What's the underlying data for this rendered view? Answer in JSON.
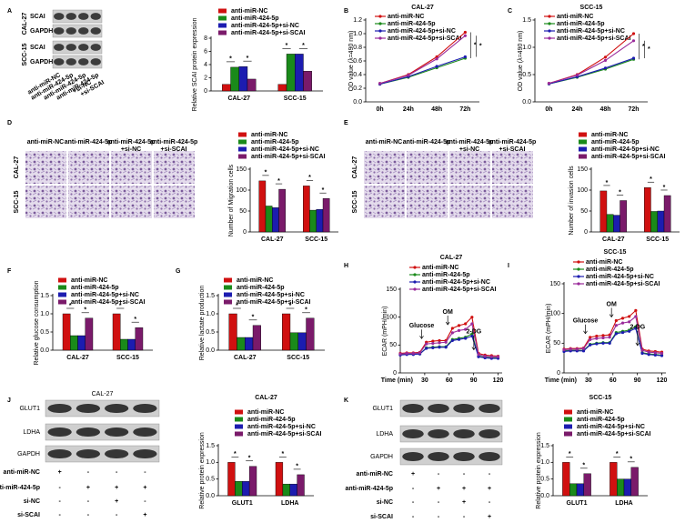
{
  "chart_data": [
    {
      "panel": "A",
      "type": "bar",
      "ylabel": "Relative SCAI protein expression",
      "categories": [
        "CAL-27",
        "SCC-15"
      ],
      "series": [
        {
          "name": "anti-miR-NC",
          "color": "#d01010",
          "values": [
            1.0,
            1.0
          ]
        },
        {
          "name": "anti-miR-424-5p",
          "color": "#1a8a1a",
          "values": [
            3.6,
            5.6
          ]
        },
        {
          "name": "anti-miR-424-5p+si-NC",
          "color": "#1c1cb0",
          "values": [
            3.7,
            5.6
          ]
        },
        {
          "name": "anti-miR-424-5p+si-SCAI",
          "color": "#7a1a6a",
          "values": [
            1.8,
            3.0
          ]
        }
      ],
      "ylim": [
        0,
        8
      ],
      "yticks": [
        0,
        2,
        4,
        6,
        8
      ],
      "annotations": [
        "*",
        "*",
        "*",
        "*"
      ]
    },
    {
      "panel": "B",
      "type": "line",
      "title": "CAL-27",
      "ylabel": "OD value (λ=490 nm)",
      "categories": [
        "0h",
        "24h",
        "48h",
        "72h"
      ],
      "series": [
        {
          "name": "anti-miR-NC",
          "color": "#d01010",
          "values": [
            0.27,
            0.4,
            0.66,
            1.02
          ]
        },
        {
          "name": "anti-miR-424-5p",
          "color": "#1a8a1a",
          "values": [
            0.26,
            0.36,
            0.5,
            0.64
          ]
        },
        {
          "name": "anti-miR-424-5p+si-NC",
          "color": "#1c1cb0",
          "values": [
            0.26,
            0.37,
            0.52,
            0.66
          ]
        },
        {
          "name": "anti-miR-424-5p+si-SCAI",
          "color": "#9a2a9a",
          "values": [
            0.27,
            0.39,
            0.63,
            0.97
          ]
        }
      ],
      "ylim": [
        0,
        1.2
      ],
      "yticks": [
        {
          "value": 0,
          "label": "0.0"
        },
        0.2,
        0.4,
        0.6,
        0.8,
        {
          "value": 1,
          "label": "1.0"
        },
        1.2
      ],
      "annotations": [
        "*",
        "*"
      ]
    },
    {
      "panel": "C",
      "type": "line",
      "title": "SCC-15",
      "ylabel": "OD value (λ=490 nm)",
      "categories": [
        "0h",
        "24h",
        "48h",
        "72h"
      ],
      "series": [
        {
          "name": "anti-miR-NC",
          "color": "#d01010",
          "values": [
            0.34,
            0.5,
            0.82,
            1.25
          ]
        },
        {
          "name": "anti-miR-424-5p",
          "color": "#1a8a1a",
          "values": [
            0.33,
            0.45,
            0.6,
            0.78
          ]
        },
        {
          "name": "anti-miR-424-5p+si-NC",
          "color": "#1c1cb0",
          "values": [
            0.33,
            0.46,
            0.62,
            0.8
          ]
        },
        {
          "name": "anti-miR-424-5p+si-SCAI",
          "color": "#9a2a9a",
          "values": [
            0.34,
            0.49,
            0.76,
            1.12
          ]
        }
      ],
      "ylim": [
        0,
        1.5
      ],
      "yticks": [
        {
          "value": 0,
          "label": "0.0"
        },
        0.5,
        {
          "value": 1,
          "label": "1.0"
        },
        1.5
      ],
      "annotations": [
        "*",
        "*"
      ]
    },
    {
      "panel": "D",
      "type": "bar",
      "ylabel": "Number of Migration cells",
      "categories": [
        "CAL-27",
        "SCC-15"
      ],
      "series": [
        {
          "name": "anti-miR-NC",
          "color": "#d01010",
          "values": [
            122,
            110
          ]
        },
        {
          "name": "anti-miR-424-5p",
          "color": "#1a8a1a",
          "values": [
            62,
            52
          ]
        },
        {
          "name": "anti-miR-424-5p+si-NC",
          "color": "#1c1cb0",
          "values": [
            58,
            54
          ]
        },
        {
          "name": "anti-miR-424-5p+si-SCAI",
          "color": "#7a1a6a",
          "values": [
            102,
            80
          ]
        }
      ],
      "ylim": [
        0,
        150
      ],
      "yticks": [
        0,
        50,
        100,
        150
      ],
      "annotations": [
        "*",
        "*",
        "*",
        "*"
      ]
    },
    {
      "panel": "E",
      "type": "bar",
      "ylabel": "Number of invasion cells",
      "categories": [
        "CAL-27",
        "SCC-15"
      ],
      "series": [
        {
          "name": "anti-miR-NC",
          "color": "#d01010",
          "values": [
            98,
            106
          ]
        },
        {
          "name": "anti-miR-424-5p",
          "color": "#1a8a1a",
          "values": [
            42,
            49
          ]
        },
        {
          "name": "anti-miR-424-5p+si-NC",
          "color": "#1c1cb0",
          "values": [
            40,
            50
          ]
        },
        {
          "name": "anti-miR-424-5p+si-SCAI",
          "color": "#7a1a6a",
          "values": [
            75,
            87
          ]
        }
      ],
      "ylim": [
        0,
        150
      ],
      "yticks": [
        0,
        50,
        100,
        150
      ],
      "annotations": [
        "*",
        "*",
        "*",
        "*"
      ]
    },
    {
      "panel": "F",
      "type": "bar",
      "ylabel": "Relative glucose consumption",
      "categories": [
        "CAL-27",
        "SCC-15"
      ],
      "series": [
        {
          "name": "anti-miR-NC",
          "color": "#d01010",
          "values": [
            1.0,
            1.0
          ]
        },
        {
          "name": "anti-miR-424-5p",
          "color": "#1a8a1a",
          "values": [
            0.4,
            0.3
          ]
        },
        {
          "name": "anti-miR-424-5p+si-NC",
          "color": "#1c1cb0",
          "values": [
            0.4,
            0.3
          ]
        },
        {
          "name": "anti-miR-424-5p+si-SCAI",
          "color": "#7a1a6a",
          "values": [
            0.88,
            0.62
          ]
        }
      ],
      "ylim": [
        0,
        1.5
      ],
      "yticks": [
        {
          "value": 0,
          "label": "0.0"
        },
        0.5,
        {
          "value": 1,
          "label": "1.0"
        },
        1.5
      ],
      "annotations": [
        "*",
        "*",
        "*",
        "*"
      ]
    },
    {
      "panel": "G",
      "type": "bar",
      "ylabel": "Relative lactate production",
      "categories": [
        "CAL-27",
        "SCC-15"
      ],
      "series": [
        {
          "name": "anti-miR-NC",
          "color": "#d01010",
          "values": [
            1.0,
            1.0
          ]
        },
        {
          "name": "anti-miR-424-5p",
          "color": "#1a8a1a",
          "values": [
            0.35,
            0.48
          ]
        },
        {
          "name": "anti-miR-424-5p+si-NC",
          "color": "#1c1cb0",
          "values": [
            0.35,
            0.48
          ]
        },
        {
          "name": "anti-miR-424-5p+si-SCAI",
          "color": "#7a1a6a",
          "values": [
            0.68,
            0.88
          ]
        }
      ],
      "ylim": [
        0,
        1.5
      ],
      "yticks": [
        {
          "value": 0,
          "label": "0.0"
        },
        0.5,
        {
          "value": 1,
          "label": "1.0"
        },
        1.5
      ],
      "annotations": [
        "*",
        "*",
        "*",
        "*"
      ]
    },
    {
      "panel": "H",
      "type": "line",
      "title": "CAL-27",
      "ylabel": "ECAR (mPH/min)",
      "xlabel": "Time (min)",
      "x": [
        0,
        8,
        16,
        24,
        32,
        40,
        48,
        56,
        64,
        72,
        80,
        88,
        96,
        104,
        112,
        120
      ],
      "series": [
        {
          "name": "anti-miR-NC",
          "color": "#d01010",
          "values": [
            35,
            36,
            36,
            37,
            55,
            57,
            58,
            58,
            80,
            85,
            88,
            100,
            35,
            32,
            31,
            30
          ]
        },
        {
          "name": "anti-miR-424-5p",
          "color": "#1a8a1a",
          "values": [
            33,
            34,
            34,
            34,
            45,
            46,
            47,
            47,
            60,
            62,
            64,
            70,
            30,
            28,
            27,
            27
          ]
        },
        {
          "name": "anti-miR-424-5p+si-NC",
          "color": "#1c1cb0",
          "values": [
            32,
            33,
            33,
            34,
            44,
            45,
            46,
            46,
            58,
            60,
            62,
            66,
            29,
            27,
            26,
            26
          ]
        },
        {
          "name": "anti-miR-424-5p+si-SCAI",
          "color": "#9a2a9a",
          "values": [
            34,
            35,
            35,
            36,
            52,
            53,
            54,
            55,
            72,
            76,
            78,
            88,
            33,
            30,
            29,
            29
          ]
        }
      ],
      "xlim": [
        0,
        125
      ],
      "xticks": [
        30,
        60,
        90,
        120
      ],
      "ylim": [
        0,
        150
      ],
      "yticks": [
        0,
        50,
        100,
        150
      ],
      "annotations": [
        "Glucose",
        "OM",
        "2-DG"
      ]
    },
    {
      "panel": "I",
      "type": "line",
      "title": "SCC-15",
      "ylabel": "ECAR (mPH/min)",
      "xlabel": "Time (min)",
      "x": [
        0,
        8,
        16,
        24,
        32,
        40,
        48,
        56,
        64,
        72,
        80,
        88,
        96,
        104,
        112,
        120
      ],
      "series": [
        {
          "name": "anti-miR-NC",
          "color": "#d01010",
          "values": [
            40,
            41,
            41,
            42,
            60,
            62,
            63,
            64,
            88,
            92,
            95,
            105,
            40,
            37,
            36,
            35
          ]
        },
        {
          "name": "anti-miR-424-5p",
          "color": "#1a8a1a",
          "values": [
            37,
            38,
            38,
            38,
            48,
            50,
            51,
            51,
            68,
            70,
            72,
            78,
            34,
            32,
            31,
            30
          ]
        },
        {
          "name": "anti-miR-424-5p+si-NC",
          "color": "#1c1cb0",
          "values": [
            36,
            37,
            37,
            37,
            47,
            49,
            50,
            50,
            66,
            68,
            70,
            75,
            33,
            31,
            30,
            29
          ]
        },
        {
          "name": "anti-miR-424-5p+si-SCAI",
          "color": "#9a2a9a",
          "values": [
            39,
            40,
            40,
            41,
            56,
            58,
            59,
            60,
            80,
            84,
            86,
            95,
            38,
            35,
            34,
            33
          ]
        }
      ],
      "xlim": [
        0,
        125
      ],
      "xticks": [
        30,
        60,
        90,
        120
      ],
      "ylim": [
        0,
        150
      ],
      "yticks": [
        0,
        50,
        100,
        150
      ],
      "annotations": [
        "Glucose",
        "OM",
        "2-DG"
      ]
    },
    {
      "panel": "J",
      "type": "bar",
      "title": "CAL-27",
      "ylabel": "Relative protein expression",
      "categories": [
        "GLUT1",
        "LDHA"
      ],
      "series": [
        {
          "name": "anti-miR-NC",
          "color": "#d01010",
          "values": [
            1.0,
            1.0
          ]
        },
        {
          "name": "anti-miR-424-5p",
          "color": "#1a8a1a",
          "values": [
            0.43,
            0.35
          ]
        },
        {
          "name": "anti-miR-424-5p+si-NC",
          "color": "#1c1cb0",
          "values": [
            0.43,
            0.35
          ]
        },
        {
          "name": "anti-miR-424-5p+si-SCAI",
          "color": "#7a1a6a",
          "values": [
            0.88,
            0.63
          ]
        }
      ],
      "ylim": [
        0,
        1.5
      ],
      "yticks": [
        {
          "value": 0,
          "label": "0.0"
        },
        0.5,
        {
          "value": 1,
          "label": "1.0"
        },
        1.5
      ],
      "annotations": [
        "*",
        "*",
        "*",
        "*"
      ]
    },
    {
      "panel": "K",
      "type": "bar",
      "title": "SCC-15",
      "ylabel": "Relative protein expression",
      "categories": [
        "GLUT1",
        "LDHA"
      ],
      "series": [
        {
          "name": "anti-miR-NC",
          "color": "#d01010",
          "values": [
            1.0,
            1.0
          ]
        },
        {
          "name": "anti-miR-424-5p",
          "color": "#1a8a1a",
          "values": [
            0.36,
            0.5
          ]
        },
        {
          "name": "anti-miR-424-5p+si-NC",
          "color": "#1c1cb0",
          "values": [
            0.36,
            0.5
          ]
        },
        {
          "name": "anti-miR-424-5p+si-SCAI",
          "color": "#7a1a6a",
          "values": [
            0.66,
            0.85
          ]
        }
      ],
      "ylim": [
        0,
        1.5
      ],
      "yticks": [
        {
          "value": 0,
          "label": "0.0"
        },
        0.5,
        {
          "value": 1,
          "label": "1.0"
        },
        1.5
      ],
      "annotations": [
        "*",
        "*",
        "*",
        "*"
      ]
    }
  ],
  "blot_A": {
    "groups": [
      {
        "name": "CAL-27",
        "rows": [
          "SCAI",
          "GAPDH"
        ]
      },
      {
        "name": "SCC-15",
        "rows": [
          "SCAI",
          "GAPDH"
        ]
      }
    ],
    "lanes": [
      [
        "anti-miR-NC"
      ],
      [
        "anti-miR-424-5p"
      ],
      [
        "anti-miR-424-5p",
        "+si-NC"
      ],
      [
        "anti-miR-424-5p",
        "+si-SCAI"
      ]
    ]
  },
  "images_D": {
    "lanes": [
      [
        "anti-miR-NC"
      ],
      [
        "anti-miR-424-5p"
      ],
      [
        "anti-miR-424-5p",
        "+si-NC"
      ],
      [
        "anti-miR-424-5p",
        "+si-SCAI"
      ]
    ],
    "rows": [
      "CAL-27",
      "SCC-15"
    ]
  },
  "images_E": {
    "lanes": [
      [
        "anti-miR-NC"
      ],
      [
        "anti-miR-424-5p"
      ],
      [
        "anti-miR-424-5p",
        "+si-NC"
      ],
      [
        "anti-miR-424-5p",
        "+si-SCAI"
      ]
    ],
    "rows": [
      "CAL-27",
      "SCC-15"
    ]
  },
  "blot_J": {
    "title": "CAL-27",
    "rows": [
      "GLUT1",
      "LDHA",
      "GAPDH"
    ],
    "treatments": [
      {
        "name": "anti-miR-NC",
        "signs": [
          "+",
          "-",
          "-",
          "-"
        ]
      },
      {
        "name": "anti-miR-424-5p",
        "signs": [
          "-",
          "+",
          "+",
          "+"
        ]
      },
      {
        "name": "si-NC",
        "signs": [
          "-",
          "-",
          "+",
          "-"
        ]
      },
      {
        "name": "si-SCAI",
        "signs": [
          "-",
          "-",
          "-",
          "+"
        ]
      }
    ]
  },
  "blot_K": {
    "rows": [
      "GLUT1",
      "LDHA",
      "GAPDH"
    ],
    "treatments": [
      {
        "name": "anti-miR-NC",
        "signs": [
          "+",
          "-",
          "-",
          "-"
        ]
      },
      {
        "name": "anti-miR-424-5p",
        "signs": [
          "-",
          "+",
          "+",
          "+"
        ]
      },
      {
        "name": "si-NC",
        "signs": [
          "-",
          "-",
          "+",
          "-"
        ]
      },
      {
        "name": "si-SCAI",
        "signs": [
          "-",
          "-",
          "-",
          "+"
        ]
      }
    ]
  }
}
